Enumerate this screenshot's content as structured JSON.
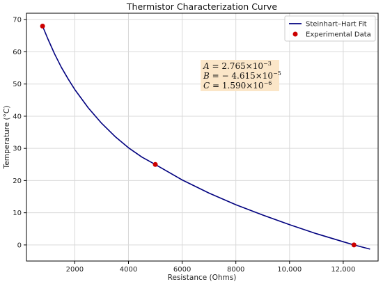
{
  "chart_data": {
    "type": "line",
    "title": "Thermistor Characterization Curve",
    "xlabel": "Resistance (Ohms)",
    "ylabel": "Temperature (°C)",
    "xlim": [
      200,
      13300
    ],
    "ylim": [
      -5,
      72
    ],
    "grid": true,
    "legend_position": "top-right",
    "x_ticks": [
      2000,
      4000,
      6000,
      8000,
      10000,
      12000
    ],
    "x_tick_labels": [
      "2000",
      "4000",
      "6000",
      "8000",
      "10,000",
      "12,000"
    ],
    "y_ticks": [
      0,
      10,
      20,
      30,
      40,
      50,
      60,
      70
    ],
    "y_tick_labels": [
      "0",
      "10",
      "20",
      "30",
      "40",
      "50",
      "60",
      "70"
    ],
    "series": [
      {
        "name": "Steinhart–Hart Fit",
        "kind": "line",
        "color": "#00007f",
        "x": [
          800,
          1000,
          1250,
          1500,
          1750,
          2000,
          2500,
          3000,
          3500,
          4000,
          4500,
          5000,
          6000,
          7000,
          8000,
          9000,
          10000,
          11000,
          12000,
          12400,
          13000
        ],
        "y": [
          68,
          64,
          59.3,
          55.2,
          51.6,
          48.3,
          42.6,
          37.8,
          33.7,
          30.2,
          27.3,
          25,
          20.2,
          16.1,
          12.5,
          9.3,
          6.3,
          3.5,
          1,
          0,
          -1.3
        ]
      },
      {
        "name": "Experimental Data",
        "kind": "scatter",
        "color": "#cc0000",
        "x": [
          800,
          5000,
          12400
        ],
        "y": [
          68,
          25,
          0
        ]
      }
    ],
    "annotation": {
      "lines": [
        {
          "var": "A",
          "eq": " = 2.765×10",
          "exp": "−3"
        },
        {
          "var": "B",
          "eq": " = − 4.615×10",
          "exp": "−5"
        },
        {
          "var": "C",
          "eq": " = 1.590×10",
          "exp": "−6"
        }
      ],
      "box_color": "#fbe6c8",
      "position": "upper-middle"
    }
  }
}
